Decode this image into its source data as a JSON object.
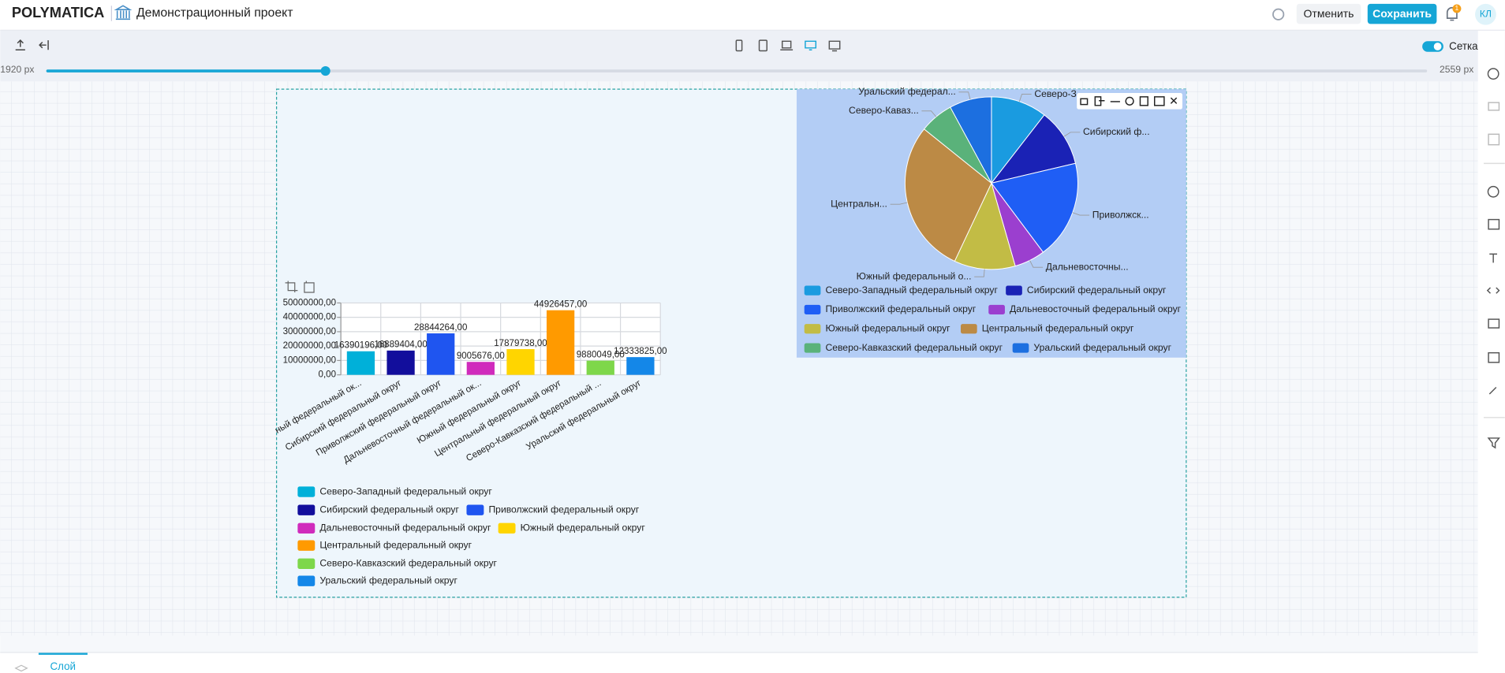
{
  "header": {
    "logo": "POLYMATICA",
    "project": "Демонстрационный проект",
    "cancel": "Отменить",
    "save": "Сохранить",
    "notifications": "1",
    "avatar": "КЛ"
  },
  "toolbar": {
    "grid_label": "Сетка",
    "min_width": "1920 px",
    "max_width": "2559 px"
  },
  "footer": {
    "layer_tab": "Слой"
  },
  "chart_data": [
    {
      "type": "bar",
      "categories": [
        "Северо-Западный федеральный округ",
        "Сибирский федеральный округ",
        "Приволжский федеральный округ",
        "Дальневосточный федеральный округ",
        "Южный федеральный округ",
        "Центральный федеральный округ",
        "Северо-Кавказский федеральный округ",
        "Уральский федеральный округ"
      ],
      "category_labels": [
        "ный федеральный ок...",
        "Сибирский федеральный округ",
        "Приволжский федеральный округ",
        "Дальневосточный федеральный ок...",
        "Южный федеральный округ",
        "Центральный федеральный округ",
        "Северо-Кавказский федеральный ...",
        "Уральский федеральный округ"
      ],
      "values": [
        16390196,
        16889404,
        28844264,
        9005676,
        17879738,
        44926457,
        9880049,
        12333825
      ],
      "value_labels": [
        "16390196,00",
        "16889404,00",
        "28844264,00",
        "9005676,00",
        "17879738,00",
        "44926457,00",
        "9880049,00",
        "12333825,00"
      ],
      "colors": [
        "#00b0d9",
        "#120e9c",
        "#1f55f0",
        "#d02bbc",
        "#ffd500",
        "#ff9a00",
        "#7ed74a",
        "#1487e8"
      ],
      "ylim": [
        0,
        50000000
      ],
      "yticks": [
        {
          "value": 0,
          "label": "0,00"
        },
        {
          "value": 10000000,
          "label": "10000000,00"
        },
        {
          "value": 20000000,
          "label": "20000000,00"
        },
        {
          "value": 30000000,
          "label": "30000000,00"
        },
        {
          "value": 40000000,
          "label": "40000000,00"
        },
        {
          "value": 50000000,
          "label": "50000000,00"
        }
      ],
      "grid": true
    },
    {
      "type": "pie",
      "categories": [
        "Северо-Западный федеральный округ",
        "Сибирский федеральный округ",
        "Приволжский федеральный округ",
        "Дальневосточный федеральный округ",
        "Южный федеральный округ",
        "Центральный федеральный округ",
        "Северо-Кавказский федеральный округ",
        "Уральский федеральный округ"
      ],
      "slice_labels": [
        "Северо-З...",
        "Сибирский ф...",
        "Приволжск...",
        "Дальневосточны...",
        "Южный федеральный о...",
        "Центральн...",
        "Северо-Каваз...",
        "Уральский федерал..."
      ],
      "values": [
        16390196,
        16889404,
        28844264,
        9005676,
        17879738,
        44926457,
        9880049,
        12333825
      ],
      "colors": [
        "#1a9be0",
        "#1a22b5",
        "#1f5ef5",
        "#9b3fcf",
        "#c2bc45",
        "#bc8a45",
        "#5ab27a",
        "#1c6fe0"
      ]
    }
  ]
}
